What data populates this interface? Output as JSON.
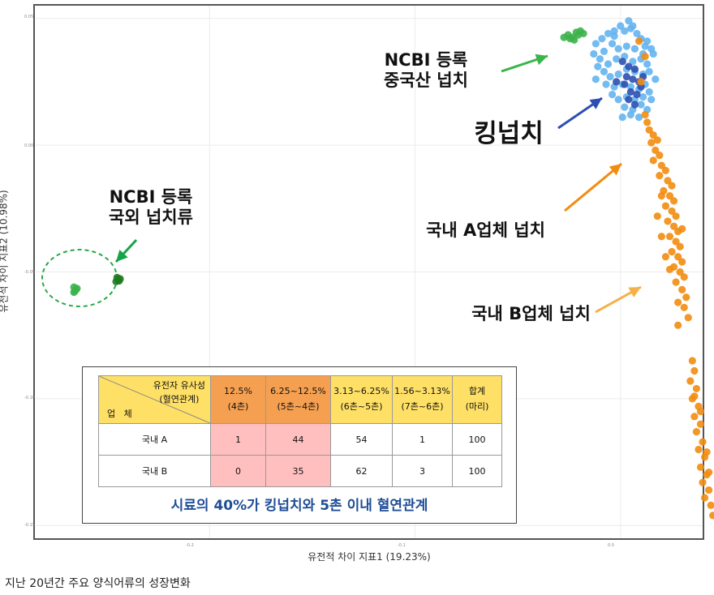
{
  "chart_data": {
    "type": "scatter",
    "xlabel": "유전적 차이 지표1 (19.23%)",
    "ylabel": "유전적 차이 지표2 (10.98%)",
    "xlim": [
      -0.285,
      0.04
    ],
    "ylim": [
      -0.155,
      0.055
    ],
    "x_ticks": [
      "-0.2",
      "-0.1",
      "0.0"
    ],
    "y_ticks": [
      "0.05",
      "0.00",
      "-0.05",
      "-0.10",
      "-0.15"
    ],
    "grid": true,
    "series": [
      {
        "color": "#3cb34a",
        "points": [
          [
            -0.266,
            -0.058
          ],
          [
            -0.265,
            -0.057
          ],
          [
            -0.266,
            -0.056
          ],
          [
            -0.2655,
            -0.0575
          ],
          [
            -0.2645,
            -0.0565
          ],
          [
            -0.0275,
            0.0425
          ],
          [
            -0.0255,
            0.0435
          ],
          [
            -0.0235,
            0.0425
          ],
          [
            -0.0225,
            0.0415
          ],
          [
            -0.0215,
            0.0445
          ],
          [
            -0.0195,
            0.045
          ],
          [
            -0.0205,
            0.0435
          ],
          [
            -0.0245,
            0.042
          ],
          [
            -0.018,
            0.044
          ]
        ]
      },
      {
        "color": "#1e7a1e",
        "points": [
          [
            -0.2455,
            -0.0538
          ],
          [
            -0.2445,
            -0.053
          ],
          [
            -0.245,
            -0.0522
          ],
          [
            -0.244,
            -0.0535
          ],
          [
            -0.2435,
            -0.0527
          ]
        ]
      },
      {
        "color": "#64b4f0",
        "points": [
          [
            -0.012,
            0.04
          ],
          [
            -0.009,
            0.042
          ],
          [
            -0.006,
            0.044
          ],
          [
            -0.003,
            0.043
          ],
          [
            0.0,
            0.047
          ],
          [
            0.002,
            0.045
          ],
          [
            0.005,
            0.046
          ],
          [
            0.008,
            0.044
          ],
          [
            0.01,
            0.042
          ],
          [
            0.013,
            0.041
          ],
          [
            0.015,
            0.038
          ],
          [
            0.011,
            0.036
          ],
          [
            0.007,
            0.038
          ],
          [
            0.003,
            0.039
          ],
          [
            -0.001,
            0.038
          ],
          [
            -0.004,
            0.04
          ],
          [
            -0.008,
            0.037
          ],
          [
            -0.01,
            0.034
          ],
          [
            -0.006,
            0.032
          ],
          [
            -0.002,
            0.034
          ],
          [
            0.002,
            0.035
          ],
          [
            0.006,
            0.033
          ],
          [
            0.01,
            0.034
          ],
          [
            0.013,
            0.032
          ],
          [
            0.014,
            0.029
          ],
          [
            0.011,
            0.028
          ],
          [
            0.007,
            0.029
          ],
          [
            0.003,
            0.03
          ],
          [
            -0.001,
            0.028
          ],
          [
            -0.005,
            0.027
          ],
          [
            -0.008,
            0.029
          ],
          [
            -0.011,
            0.031
          ],
          [
            -0.007,
            0.024
          ],
          [
            -0.003,
            0.023
          ],
          [
            0.001,
            0.024
          ],
          [
            0.005,
            0.023
          ],
          [
            0.009,
            0.022
          ],
          [
            0.012,
            0.024
          ],
          [
            0.014,
            0.021
          ],
          [
            0.011,
            0.019
          ],
          [
            0.007,
            0.018
          ],
          [
            0.003,
            0.019
          ],
          [
            -0.001,
            0.018
          ],
          [
            -0.004,
            0.02
          ],
          [
            0.002,
            0.015
          ],
          [
            0.006,
            0.014
          ],
          [
            0.01,
            0.016
          ],
          [
            0.013,
            0.014
          ],
          [
            0.009,
            0.011
          ],
          [
            0.005,
            0.012
          ],
          [
            0.001,
            0.011
          ],
          [
            0.016,
            0.036
          ],
          [
            0.017,
            0.026
          ],
          [
            -0.013,
            0.036
          ],
          [
            -0.012,
            0.026
          ],
          [
            0.004,
            0.049
          ],
          [
            0.006,
            0.047
          ],
          [
            0.012,
            0.039
          ],
          [
            -0.003,
            0.045
          ],
          [
            0.015,
            0.018
          ]
        ]
      },
      {
        "color": "#2d4fb0",
        "points": [
          [
            0.001,
            0.033
          ],
          [
            0.004,
            0.031
          ],
          [
            0.007,
            0.03
          ],
          [
            0.003,
            0.027
          ],
          [
            0.006,
            0.026
          ],
          [
            0.009,
            0.025
          ],
          [
            0.002,
            0.024
          ],
          [
            0.005,
            0.021
          ],
          [
            0.008,
            0.02
          ],
          [
            0.01,
            0.023
          ],
          [
            0.004,
            0.018
          ],
          [
            0.007,
            0.016
          ],
          [
            -0.002,
            0.025
          ],
          [
            0.011,
            0.027
          ]
        ]
      },
      {
        "color": "#f28c0f",
        "points": [
          [
            0.009,
            0.041
          ],
          [
            0.012,
            0.035
          ],
          [
            0.01,
            0.025
          ],
          [
            0.012,
            0.012
          ],
          [
            0.013,
            0.009
          ],
          [
            0.014,
            0.006
          ],
          [
            0.016,
            0.004
          ],
          [
            0.018,
            0.002
          ],
          [
            0.015,
            0.001
          ],
          [
            0.017,
            -0.002
          ],
          [
            0.019,
            -0.004
          ],
          [
            0.016,
            -0.006
          ],
          [
            0.02,
            -0.008
          ],
          [
            0.022,
            -0.01
          ],
          [
            0.019,
            -0.012
          ],
          [
            0.023,
            -0.014
          ],
          [
            0.025,
            -0.016
          ],
          [
            0.021,
            -0.018
          ],
          [
            0.024,
            -0.02
          ],
          [
            0.026,
            -0.022
          ],
          [
            0.022,
            -0.024
          ],
          [
            0.025,
            -0.026
          ],
          [
            0.027,
            -0.028
          ],
          [
            0.023,
            -0.03
          ],
          [
            0.026,
            -0.032
          ],
          [
            0.028,
            -0.034
          ],
          [
            0.024,
            -0.036
          ],
          [
            0.027,
            -0.038
          ],
          [
            0.029,
            -0.04
          ],
          [
            0.025,
            -0.042
          ],
          [
            0.028,
            -0.044
          ],
          [
            0.03,
            -0.046
          ],
          [
            0.026,
            -0.048
          ],
          [
            0.029,
            -0.05
          ],
          [
            0.031,
            -0.052
          ],
          [
            0.027,
            -0.054
          ],
          [
            0.03,
            -0.057
          ],
          [
            0.032,
            -0.06
          ],
          [
            0.028,
            -0.062
          ],
          [
            0.031,
            -0.064
          ],
          [
            0.02,
            -0.036
          ],
          [
            0.022,
            -0.044
          ],
          [
            0.018,
            -0.028
          ],
          [
            0.033,
            -0.068
          ],
          [
            0.028,
            -0.071
          ],
          [
            0.024,
            -0.049
          ],
          [
            0.02,
            -0.02
          ],
          [
            0.03,
            -0.033
          ],
          [
            0.035,
            -0.085
          ],
          [
            0.036,
            -0.089
          ],
          [
            0.034,
            -0.093
          ],
          [
            0.037,
            -0.096
          ],
          [
            0.035,
            -0.1
          ],
          [
            0.038,
            -0.103
          ],
          [
            0.036,
            -0.107
          ],
          [
            0.039,
            -0.11
          ],
          [
            0.037,
            -0.113
          ],
          [
            0.04,
            -0.117
          ],
          [
            0.038,
            -0.12
          ],
          [
            0.041,
            -0.123
          ],
          [
            0.039,
            -0.127
          ],
          [
            0.042,
            -0.13
          ],
          [
            0.04,
            -0.133
          ],
          [
            0.043,
            -0.136
          ],
          [
            0.041,
            -0.139
          ],
          [
            0.044,
            -0.142
          ],
          [
            0.045,
            -0.146
          ],
          [
            0.036,
            -0.099
          ],
          [
            0.039,
            -0.105
          ],
          [
            0.042,
            -0.121
          ],
          [
            0.043,
            -0.129
          ]
        ]
      }
    ]
  },
  "annotations": {
    "ncbi_china": "NCBI 등록\n중국산 넙치",
    "king": "킹넙치",
    "ncbi_foreign": "NCBI 등록\n국외 넙치류",
    "domestic_a": "국내 A업체 넙치",
    "domestic_b": "국내 B업체 넙치"
  },
  "inset_table": {
    "corner_top": "유전자 유사성\n(혈연관계)",
    "corner_bottom": "업   체",
    "headers": [
      "12.5%\n(4촌)",
      "6.25~12.5%\n(5촌~4촌)",
      "3.13~6.25%\n(6촌~5촌)",
      "1.56~3.13%\n(7촌~6촌)",
      "합계\n(마리)"
    ],
    "rows": [
      {
        "name": "국내 A",
        "values": [
          "1",
          "44",
          "54",
          "1",
          "100"
        ]
      },
      {
        "name": "국내 B",
        "values": [
          "0",
          "35",
          "62",
          "3",
          "100"
        ]
      }
    ],
    "note": "시료의 40%가 킹넙치와 5촌 이내 혈연관계"
  },
  "caption": "지난 20년간 주요 양식어류의 성장변화"
}
